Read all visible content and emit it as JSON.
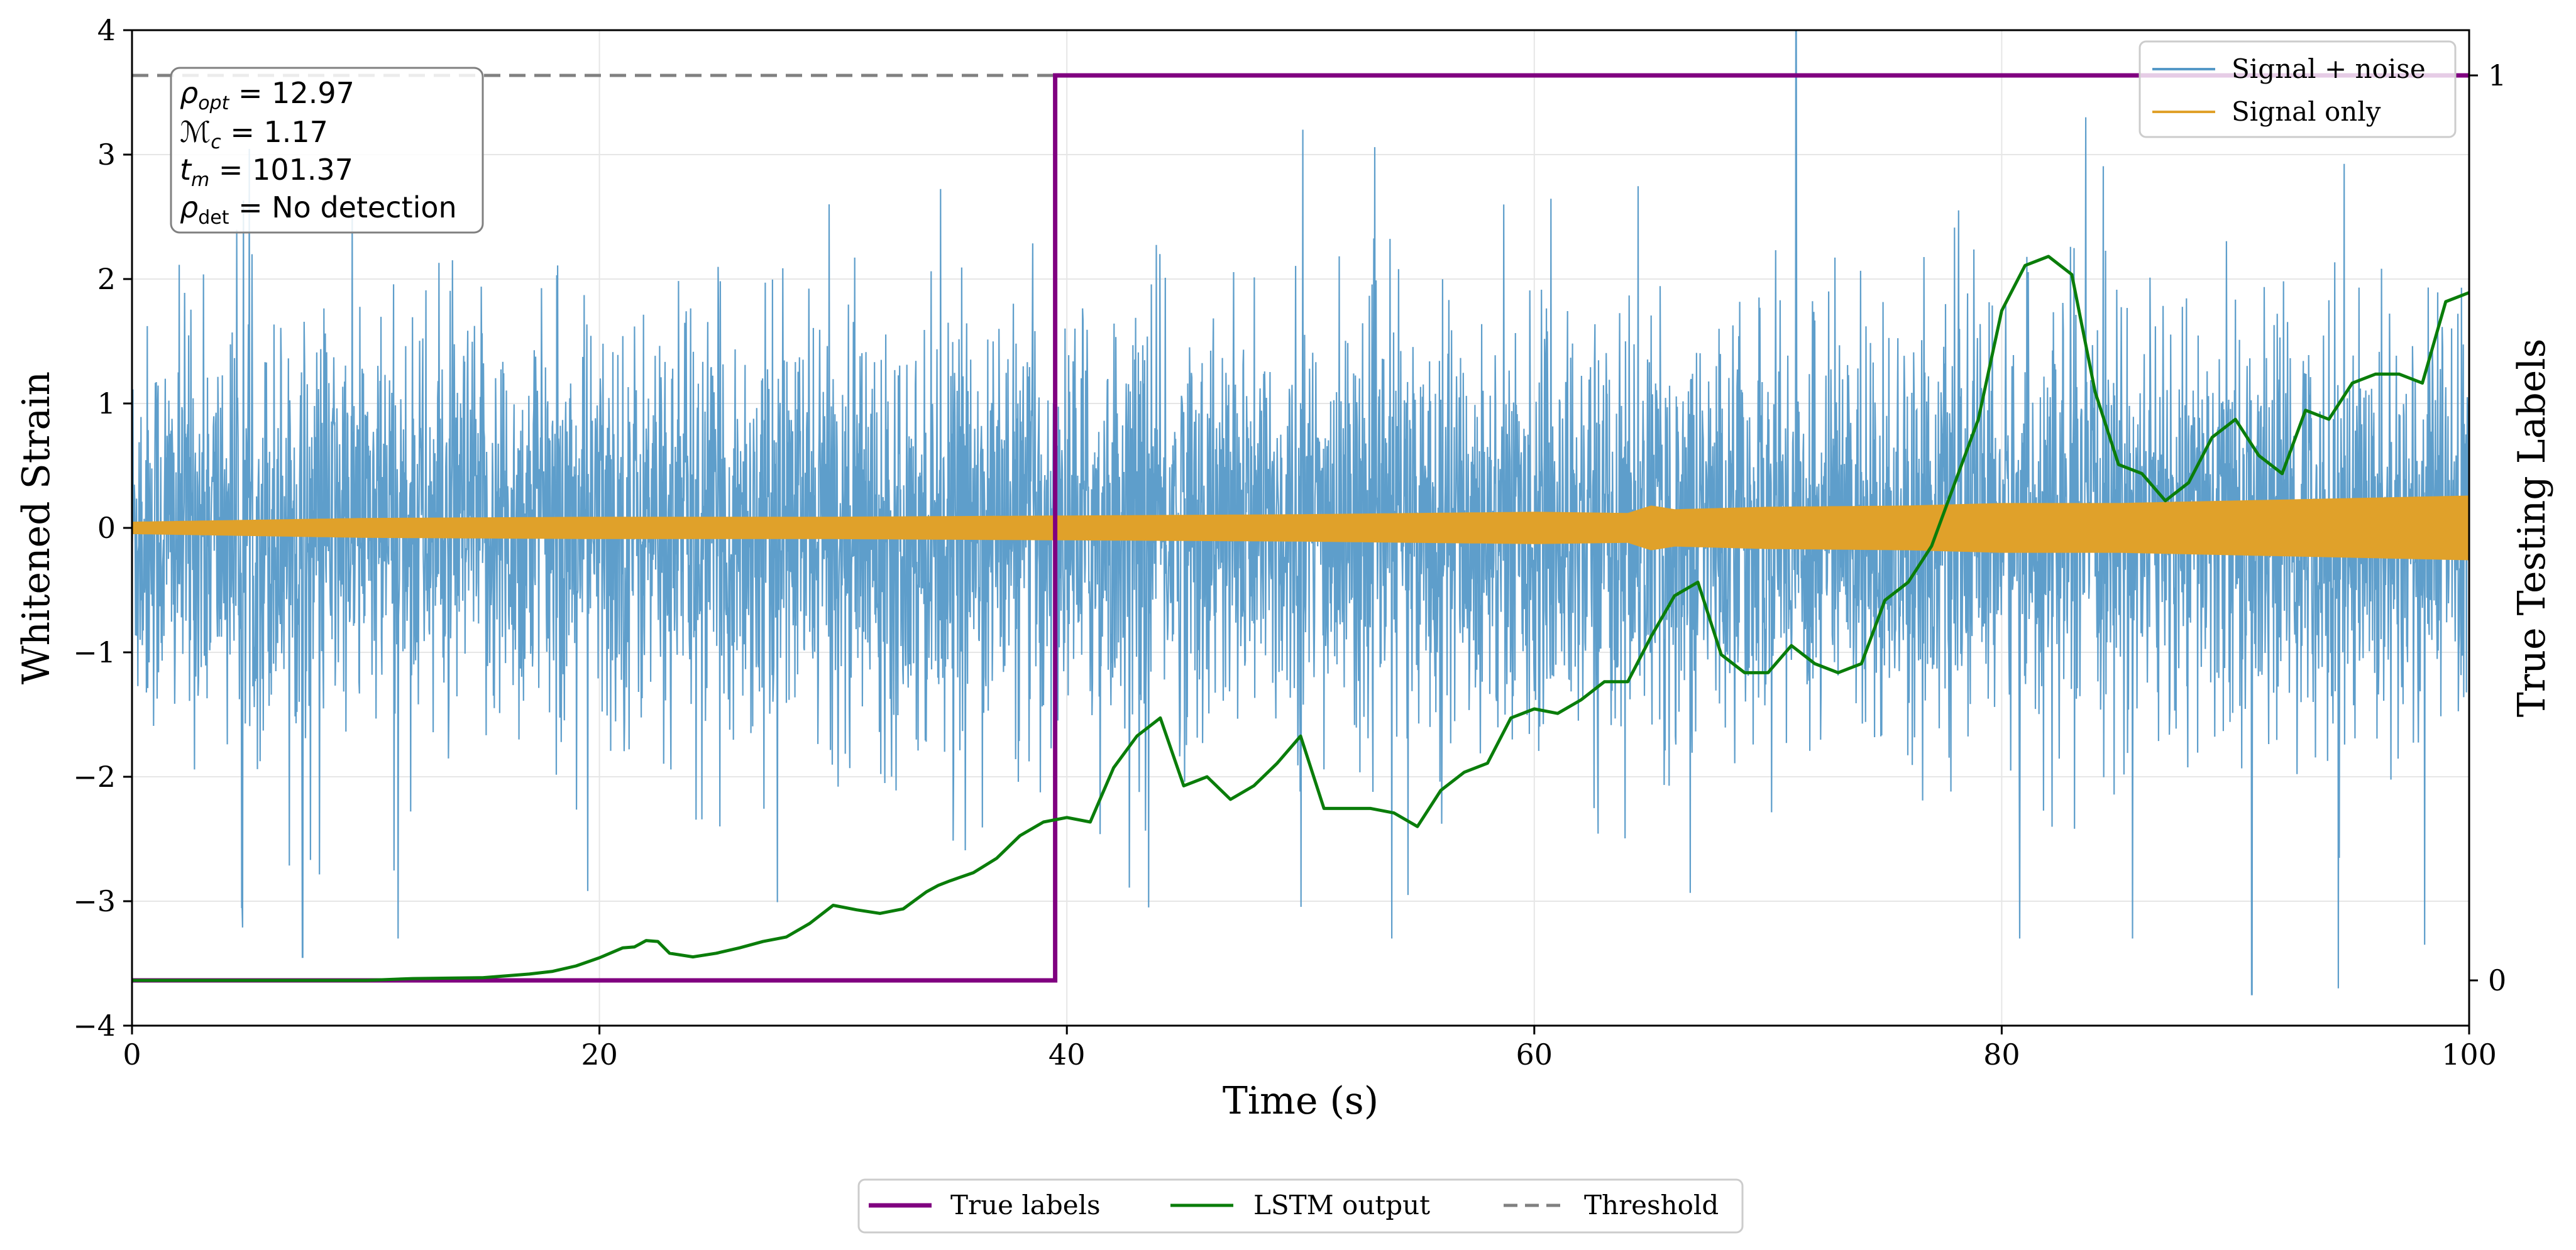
{
  "chart_data": {
    "type": "line",
    "xlabel": "Time (s)",
    "ylabel": "Whitened Strain",
    "y2label": "True Testing Labels",
    "xlim": [
      0,
      100
    ],
    "ylim": [
      -4,
      4
    ],
    "y2lim": [
      -0.05,
      1.05
    ],
    "xticks": [
      0,
      20,
      40,
      60,
      80,
      100
    ],
    "xtick_labels": [
      "0",
      "20",
      "40",
      "60",
      "80",
      "100"
    ],
    "yticks": [
      -4,
      -3,
      -2,
      -1,
      0,
      1,
      2,
      3,
      4
    ],
    "ytick_labels": [
      "−4",
      "−3",
      "−2",
      "−1",
      "0",
      "1",
      "2",
      "3",
      "4"
    ],
    "y2ticks": [
      0,
      1
    ],
    "y2tick_labels": [
      "0",
      "1"
    ],
    "grid": true,
    "colors": {
      "signal_noise": "#5599c8",
      "signal_only": "#e0a12a",
      "true_labels": "#800080",
      "lstm": "#0a7d0a",
      "threshold": "#808080"
    },
    "annotation": {
      "rho_opt": "12.97",
      "mc": "1.17",
      "tm": "101.37",
      "rho_det": "No detection"
    },
    "legend_upper": {
      "position": "top-right",
      "entries": [
        "Signal + noise",
        "Signal only"
      ]
    },
    "legend_lower": {
      "position": "bottom-center",
      "entries": [
        "True labels",
        "LSTM output",
        "Threshold"
      ]
    },
    "series": [
      {
        "name": "Signal + noise",
        "axis": "left",
        "description_stats": {
          "x_range": [
            0,
            100
          ],
          "typical_std": 0.8
        },
        "spikes": [
          [
            71.2,
            4.0
          ],
          [
            50.1,
            3.2
          ],
          [
            90.7,
            -3.75
          ],
          [
            94.4,
            -3.7
          ],
          [
            7.3,
            -3.45
          ],
          [
            4.7,
            -3.05
          ],
          [
            98.1,
            -3.35
          ],
          [
            43.5,
            -3.05
          ],
          [
            54.6,
            -2.95
          ]
        ]
      },
      {
        "name": "Signal only",
        "axis": "left",
        "envelope": {
          "x": [
            0,
            10,
            20,
            30,
            40,
            50,
            60,
            64,
            65,
            66,
            70,
            76,
            80,
            85,
            90,
            95,
            100
          ],
          "amp": [
            0.05,
            0.08,
            0.09,
            0.09,
            0.1,
            0.11,
            0.13,
            0.12,
            0.18,
            0.15,
            0.17,
            0.18,
            0.2,
            0.2,
            0.22,
            0.24,
            0.26
          ]
        }
      },
      {
        "name": "True labels",
        "axis": "right",
        "x": [
          0,
          39.5,
          39.5,
          100
        ],
        "y": [
          0,
          0,
          1,
          1
        ]
      },
      {
        "name": "LSTM output",
        "axis": "right",
        "x": [
          0,
          5,
          10,
          12,
          15,
          17,
          18,
          19,
          20,
          21,
          21.5,
          22,
          22.5,
          23,
          24,
          25,
          26,
          27,
          28,
          29,
          30,
          31,
          32,
          33,
          34,
          34.5,
          35,
          36,
          37,
          38,
          39,
          40,
          41,
          42,
          43,
          44,
          45,
          46,
          47,
          48,
          49,
          50,
          51,
          52,
          53,
          54,
          55,
          56,
          57,
          58,
          59,
          60,
          61,
          62,
          63,
          64,
          65,
          66,
          67,
          68,
          69,
          70,
          71,
          72,
          73,
          74,
          75,
          76,
          77,
          78,
          79,
          80,
          81,
          82,
          83,
          84,
          85,
          86,
          87,
          88,
          89,
          90,
          91,
          92,
          93,
          94,
          95,
          96,
          97,
          98,
          99,
          100
        ],
        "y": [
          0,
          0,
          0,
          0.002,
          0.003,
          0.007,
          0.01,
          0.016,
          0.025,
          0.036,
          0.037,
          0.044,
          0.043,
          0.03,
          0.026,
          0.03,
          0.036,
          0.043,
          0.048,
          0.063,
          0.083,
          0.078,
          0.074,
          0.079,
          0.098,
          0.105,
          0.11,
          0.119,
          0.135,
          0.16,
          0.175,
          0.18,
          0.175,
          0.235,
          0.27,
          0.29,
          0.215,
          0.225,
          0.2,
          0.215,
          0.24,
          0.27,
          0.19,
          0.19,
          0.19,
          0.185,
          0.17,
          0.21,
          0.23,
          0.24,
          0.29,
          0.3,
          0.295,
          0.31,
          0.33,
          0.33,
          0.38,
          0.425,
          0.44,
          0.36,
          0.34,
          0.34,
          0.37,
          0.35,
          0.34,
          0.35,
          0.42,
          0.44,
          0.48,
          0.55,
          0.62,
          0.74,
          0.79,
          0.8,
          0.78,
          0.65,
          0.57,
          0.56,
          0.53,
          0.55,
          0.6,
          0.62,
          0.58,
          0.56,
          0.63,
          0.62,
          0.66,
          0.67,
          0.67,
          0.66,
          0.75,
          0.76
        ]
      },
      {
        "name": "Threshold",
        "axis": "right",
        "y": 1,
        "style": "dashed"
      }
    ]
  }
}
